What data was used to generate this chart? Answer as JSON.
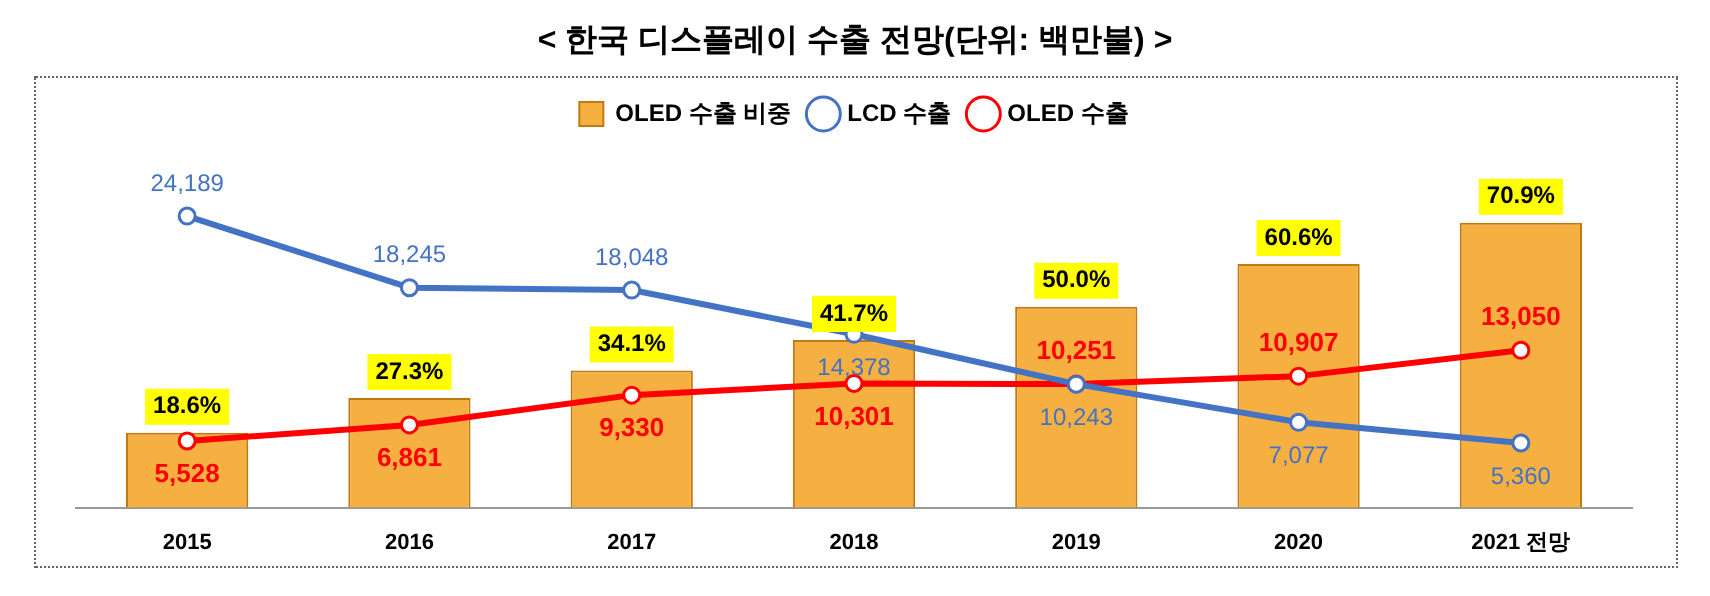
{
  "chart_data": {
    "type": "bar",
    "title": "< 한국 디스플레이 수출 전망(단위: 백만불) >",
    "categories": [
      "2015",
      "2016",
      "2017",
      "2018",
      "2019",
      "2020",
      "2021 전망"
    ],
    "tick_labels": "x",
    "legend": "top",
    "marker": "circle",
    "series": [
      {
        "name": "OLED 수출 비중",
        "color": "#f5b041",
        "axis": "y2",
        "values": [
          18.6,
          27.3,
          34.1,
          41.7,
          50.0,
          60.6,
          70.9
        ],
        "value_labels": [
          "18.6%",
          "27.3%",
          "34.1%",
          "41.7%",
          "50.0%",
          "60.6%",
          "70.9%"
        ]
      },
      {
        "type": "line",
        "name": "LCD 수출",
        "color": "#4472c4",
        "values": [
          24189,
          18245,
          18048,
          14378,
          10243,
          7077,
          5360
        ],
        "value_labels": [
          "24,189",
          "18,245",
          "18,048",
          "14,378",
          "10,243",
          "7,077",
          "5,360"
        ]
      },
      {
        "type": "line",
        "name": "OLED 수출",
        "color": "#ff0000",
        "values": [
          5528,
          6861,
          9330,
          10301,
          10251,
          10907,
          13050
        ],
        "value_labels": [
          "5,528",
          "6,861",
          "9,330",
          "10,301",
          "10,251",
          "10,907",
          "13,050"
        ]
      }
    ]
  }
}
